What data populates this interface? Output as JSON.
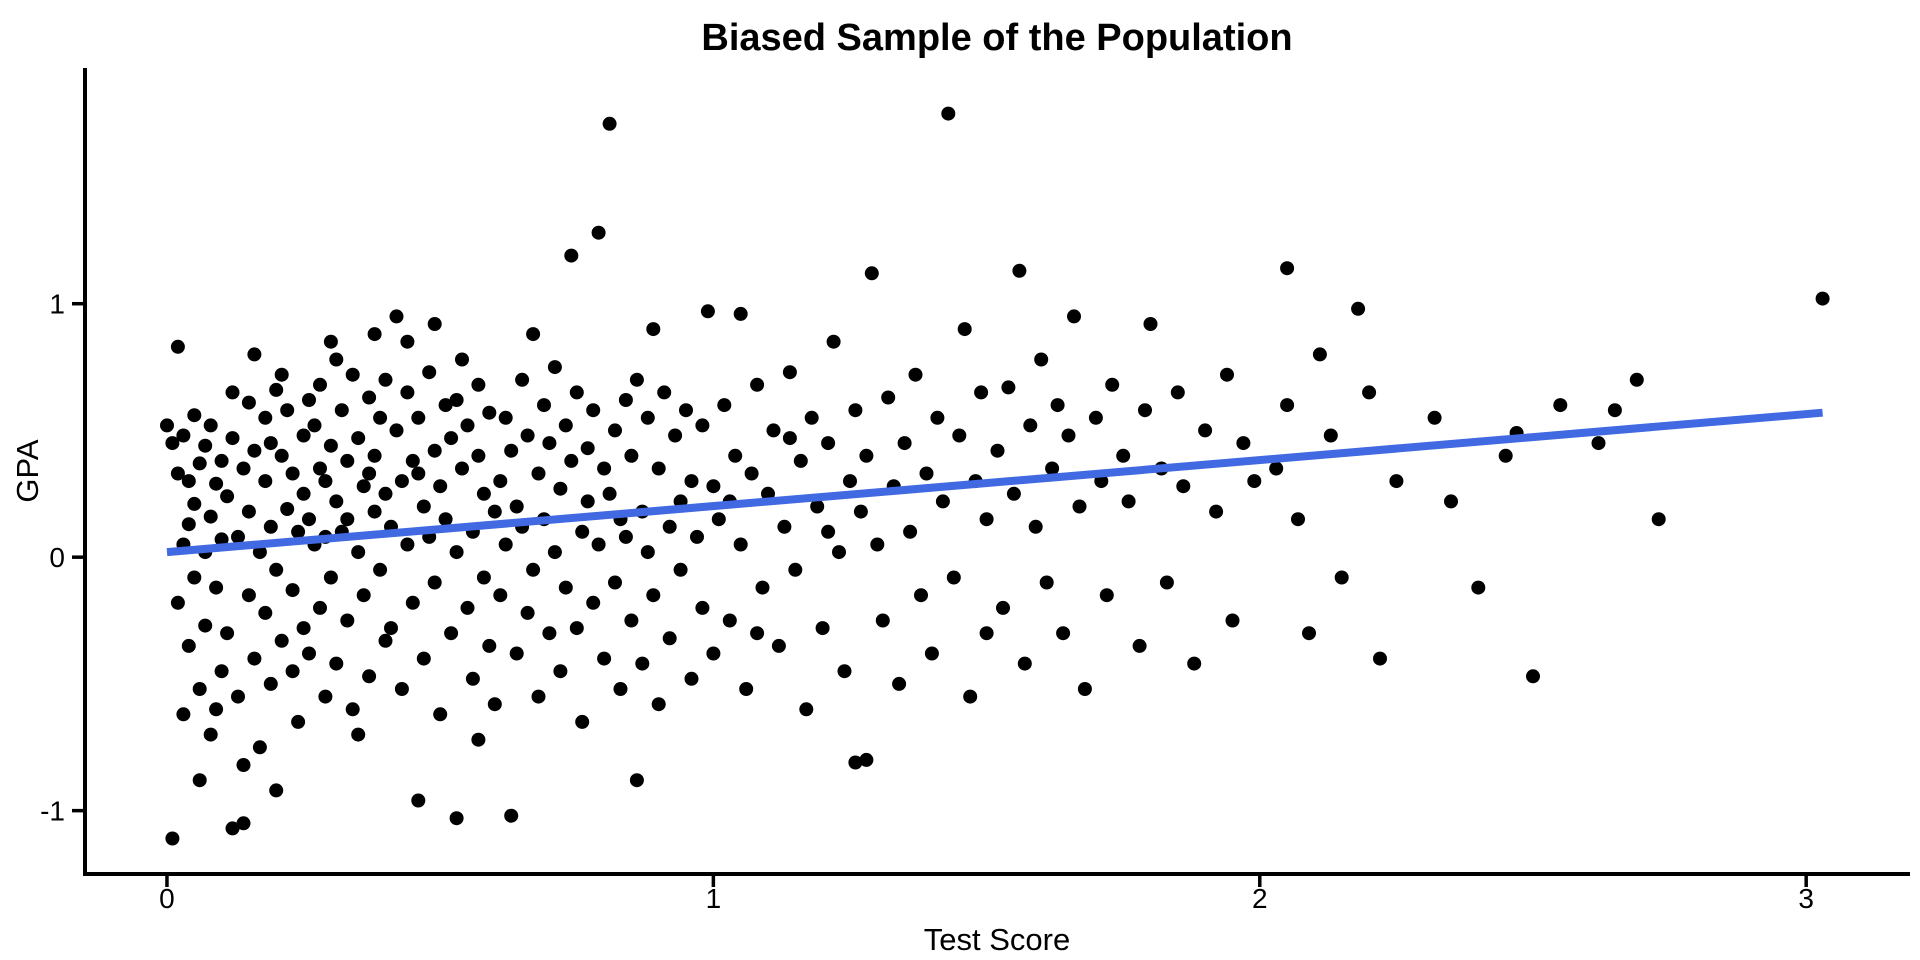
{
  "page": {
    "background": "#ffffff"
  },
  "chart_data": {
    "type": "scatter",
    "title": "Biased Sample of the Population",
    "xlabel": "Test Score",
    "ylabel": "GPA",
    "xlim": [
      -0.15,
      3.19
    ],
    "ylim": [
      -1.25,
      1.93
    ],
    "x_ticks": [
      0,
      1,
      2,
      3
    ],
    "y_ticks": [
      -1,
      0,
      1
    ],
    "grid": false,
    "legend": "none",
    "axis_color": "#000000",
    "point_color": "#000000",
    "point_radius": 7,
    "trend_line": {
      "type": "linear",
      "x1": 0.0,
      "y1": 0.02,
      "x2": 3.03,
      "y2": 0.57,
      "color": "#4169E1",
      "width": 8
    },
    "points": [
      [
        0.0,
        0.52
      ],
      [
        0.01,
        -1.11
      ],
      [
        0.01,
        0.45
      ],
      [
        0.02,
        0.83
      ],
      [
        0.02,
        -0.18
      ],
      [
        0.02,
        0.33
      ],
      [
        0.03,
        0.05
      ],
      [
        0.03,
        -0.62
      ],
      [
        0.03,
        0.48
      ],
      [
        0.04,
        0.13
      ],
      [
        0.04,
        -0.35
      ],
      [
        0.05,
        0.56
      ],
      [
        0.05,
        -0.08
      ],
      [
        0.05,
        0.21
      ],
      [
        0.06,
        -0.52
      ],
      [
        0.06,
        0.37
      ],
      [
        0.07,
        0.02
      ],
      [
        0.07,
        -0.27
      ],
      [
        0.07,
        0.44
      ],
      [
        0.08,
        -0.7
      ],
      [
        0.08,
        0.16
      ],
      [
        0.08,
        0.52
      ],
      [
        0.09,
        -0.12
      ],
      [
        0.09,
        0.29
      ],
      [
        0.1,
        -0.45
      ],
      [
        0.1,
        0.07
      ],
      [
        0.1,
        0.38
      ],
      [
        0.06,
        -0.88
      ],
      [
        0.04,
        0.3
      ],
      [
        0.09,
        -0.6
      ],
      [
        0.11,
        0.24
      ],
      [
        0.11,
        -0.3
      ],
      [
        0.12,
        0.47
      ],
      [
        0.12,
        -1.07
      ],
      [
        0.13,
        0.08
      ],
      [
        0.13,
        -0.55
      ],
      [
        0.14,
        0.35
      ],
      [
        0.14,
        -1.05
      ],
      [
        0.15,
        0.61
      ],
      [
        0.15,
        -0.15
      ],
      [
        0.15,
        0.18
      ],
      [
        0.16,
        -0.4
      ],
      [
        0.16,
        0.42
      ],
      [
        0.17,
        0.02
      ],
      [
        0.17,
        -0.75
      ],
      [
        0.18,
        0.55
      ],
      [
        0.18,
        -0.22
      ],
      [
        0.18,
        0.3
      ],
      [
        0.19,
        -0.5
      ],
      [
        0.19,
        0.12
      ],
      [
        0.2,
        0.66
      ],
      [
        0.2,
        -0.05
      ],
      [
        0.2,
        -0.92
      ],
      [
        0.21,
        0.4
      ],
      [
        0.21,
        -0.33
      ],
      [
        0.22,
        0.19
      ],
      [
        0.22,
        0.58
      ],
      [
        0.23,
        -0.13
      ],
      [
        0.23,
        0.33
      ],
      [
        0.24,
        -0.65
      ],
      [
        0.24,
        0.1
      ],
      [
        0.25,
        0.48
      ],
      [
        0.25,
        -0.28
      ],
      [
        0.12,
        0.65
      ],
      [
        0.16,
        0.8
      ],
      [
        0.21,
        0.72
      ],
      [
        0.14,
        -0.82
      ],
      [
        0.19,
        0.45
      ],
      [
        0.23,
        -0.45
      ],
      [
        0.25,
        0.25
      ],
      [
        0.26,
        0.15
      ],
      [
        0.26,
        -0.38
      ],
      [
        0.27,
        0.52
      ],
      [
        0.27,
        0.05
      ],
      [
        0.28,
        -0.2
      ],
      [
        0.28,
        0.68
      ],
      [
        0.29,
        0.3
      ],
      [
        0.29,
        -0.55
      ],
      [
        0.3,
        0.44
      ],
      [
        0.3,
        -0.08
      ],
      [
        0.3,
        0.85
      ],
      [
        0.31,
        0.22
      ],
      [
        0.31,
        -0.42
      ],
      [
        0.32,
        0.58
      ],
      [
        0.32,
        0.1
      ],
      [
        0.33,
        -0.25
      ],
      [
        0.33,
        0.38
      ],
      [
        0.34,
        0.72
      ],
      [
        0.34,
        -0.6
      ],
      [
        0.35,
        0.02
      ],
      [
        0.35,
        0.47
      ],
      [
        0.36,
        -0.15
      ],
      [
        0.36,
        0.28
      ],
      [
        0.37,
        0.63
      ],
      [
        0.37,
        -0.47
      ],
      [
        0.38,
        0.18
      ],
      [
        0.38,
        0.4
      ],
      [
        0.39,
        -0.05
      ],
      [
        0.39,
        0.55
      ],
      [
        0.4,
        -0.33
      ],
      [
        0.4,
        0.25
      ],
      [
        0.28,
        0.35
      ],
      [
        0.31,
        0.78
      ],
      [
        0.35,
        -0.7
      ],
      [
        0.38,
        0.88
      ],
      [
        0.26,
        0.62
      ],
      [
        0.33,
        0.15
      ],
      [
        0.37,
        0.33
      ],
      [
        0.29,
        0.08
      ],
      [
        0.4,
        0.7
      ],
      [
        0.41,
        0.12
      ],
      [
        0.41,
        -0.28
      ],
      [
        0.42,
        0.5
      ],
      [
        0.42,
        0.95
      ],
      [
        0.43,
        -0.52
      ],
      [
        0.43,
        0.3
      ],
      [
        0.44,
        0.05
      ],
      [
        0.44,
        0.65
      ],
      [
        0.45,
        -0.18
      ],
      [
        0.45,
        0.38
      ],
      [
        0.46,
        -0.96
      ],
      [
        0.46,
        0.55
      ],
      [
        0.47,
        0.2
      ],
      [
        0.47,
        -0.4
      ],
      [
        0.48,
        0.73
      ],
      [
        0.48,
        0.08
      ],
      [
        0.49,
        -0.1
      ],
      [
        0.49,
        0.42
      ],
      [
        0.5,
        0.28
      ],
      [
        0.5,
        -0.62
      ],
      [
        0.51,
        0.6
      ],
      [
        0.51,
        0.15
      ],
      [
        0.52,
        -0.3
      ],
      [
        0.52,
        0.47
      ],
      [
        0.53,
        0.02
      ],
      [
        0.53,
        -1.03
      ],
      [
        0.54,
        0.35
      ],
      [
        0.54,
        0.78
      ],
      [
        0.55,
        -0.2
      ],
      [
        0.55,
        0.52
      ],
      [
        0.56,
        0.1
      ],
      [
        0.56,
        -0.48
      ],
      [
        0.57,
        0.4
      ],
      [
        0.57,
        0.68
      ],
      [
        0.58,
        -0.08
      ],
      [
        0.58,
        0.25
      ],
      [
        0.59,
        -0.35
      ],
      [
        0.59,
        0.57
      ],
      [
        0.6,
        0.18
      ],
      [
        0.6,
        -0.58
      ],
      [
        0.44,
        0.85
      ],
      [
        0.49,
        0.92
      ],
      [
        0.53,
        0.62
      ],
      [
        0.57,
        -0.72
      ],
      [
        0.46,
        0.33
      ],
      [
        0.61,
        0.3
      ],
      [
        0.61,
        -0.15
      ],
      [
        0.62,
        0.55
      ],
      [
        0.62,
        0.05
      ],
      [
        0.63,
        -1.02
      ],
      [
        0.63,
        0.42
      ],
      [
        0.64,
        0.2
      ],
      [
        0.64,
        -0.38
      ],
      [
        0.65,
        0.7
      ],
      [
        0.65,
        0.12
      ],
      [
        0.66,
        -0.22
      ],
      [
        0.66,
        0.48
      ],
      [
        0.67,
        0.88
      ],
      [
        0.67,
        -0.05
      ],
      [
        0.68,
        0.33
      ],
      [
        0.68,
        -0.55
      ],
      [
        0.69,
        0.6
      ],
      [
        0.69,
        0.15
      ],
      [
        0.7,
        -0.3
      ],
      [
        0.7,
        0.45
      ],
      [
        0.71,
        0.02
      ],
      [
        0.71,
        0.75
      ],
      [
        0.72,
        -0.45
      ],
      [
        0.72,
        0.27
      ],
      [
        0.73,
        0.52
      ],
      [
        0.73,
        -0.12
      ],
      [
        0.74,
        1.19
      ],
      [
        0.74,
        0.38
      ],
      [
        0.75,
        -0.28
      ],
      [
        0.75,
        0.65
      ],
      [
        0.76,
        0.1
      ],
      [
        0.76,
        -0.65
      ],
      [
        0.77,
        0.43
      ],
      [
        0.77,
        0.22
      ],
      [
        0.78,
        -0.18
      ],
      [
        0.78,
        0.58
      ],
      [
        0.79,
        0.05
      ],
      [
        0.79,
        1.28
      ],
      [
        0.8,
        -0.4
      ],
      [
        0.8,
        0.35
      ],
      [
        0.81,
        1.71
      ],
      [
        0.81,
        0.25
      ],
      [
        0.82,
        -0.1
      ],
      [
        0.82,
        0.5
      ],
      [
        0.83,
        0.15
      ],
      [
        0.83,
        -0.52
      ],
      [
        0.84,
        0.62
      ],
      [
        0.84,
        0.08
      ],
      [
        0.85,
        -0.25
      ],
      [
        0.85,
        0.4
      ],
      [
        0.86,
        -0.88
      ],
      [
        0.86,
        0.7
      ],
      [
        0.87,
        0.18
      ],
      [
        0.87,
        -0.42
      ],
      [
        0.88,
        0.55
      ],
      [
        0.88,
        0.02
      ],
      [
        0.89,
        0.9
      ],
      [
        0.89,
        -0.15
      ],
      [
        0.9,
        0.35
      ],
      [
        0.9,
        -0.58
      ],
      [
        0.91,
        0.65
      ],
      [
        0.92,
        0.12
      ],
      [
        0.92,
        -0.32
      ],
      [
        0.93,
        0.48
      ],
      [
        0.94,
        0.22
      ],
      [
        0.94,
        -0.05
      ],
      [
        0.95,
        0.58
      ],
      [
        0.96,
        -0.48
      ],
      [
        0.96,
        0.3
      ],
      [
        0.97,
        0.08
      ],
      [
        0.98,
        -0.2
      ],
      [
        0.98,
        0.52
      ],
      [
        0.99,
        0.97
      ],
      [
        1.0,
        0.28
      ],
      [
        1.0,
        -0.38
      ],
      [
        1.01,
        0.15
      ],
      [
        1.02,
        0.6
      ],
      [
        1.03,
        -0.25
      ],
      [
        1.04,
        0.4
      ],
      [
        1.05,
        0.05
      ],
      [
        1.05,
        0.96
      ],
      [
        1.06,
        -0.52
      ],
      [
        1.07,
        0.33
      ],
      [
        1.08,
        0.68
      ],
      [
        1.09,
        -0.12
      ],
      [
        1.1,
        0.25
      ],
      [
        1.11,
        0.5
      ],
      [
        1.12,
        -0.35
      ],
      [
        1.13,
        0.12
      ],
      [
        1.14,
        0.73
      ],
      [
        1.15,
        -0.05
      ],
      [
        1.16,
        0.38
      ],
      [
        1.17,
        -0.6
      ],
      [
        1.18,
        0.55
      ],
      [
        1.19,
        0.2
      ],
      [
        1.2,
        -0.28
      ],
      [
        1.21,
        0.45
      ],
      [
        1.22,
        0.85
      ],
      [
        1.23,
        0.02
      ],
      [
        1.24,
        -0.45
      ],
      [
        1.25,
        0.3
      ],
      [
        1.03,
        0.22
      ],
      [
        1.08,
        -0.3
      ],
      [
        1.14,
        0.47
      ],
      [
        1.21,
        0.1
      ],
      [
        1.26,
        -0.81
      ],
      [
        1.26,
        0.58
      ],
      [
        1.27,
        0.18
      ],
      [
        1.28,
        -0.8
      ],
      [
        1.28,
        0.4
      ],
      [
        1.29,
        1.12
      ],
      [
        1.3,
        0.05
      ],
      [
        1.31,
        -0.25
      ],
      [
        1.32,
        0.63
      ],
      [
        1.33,
        0.28
      ],
      [
        1.34,
        -0.5
      ],
      [
        1.35,
        0.45
      ],
      [
        1.36,
        0.1
      ],
      [
        1.37,
        0.72
      ],
      [
        1.38,
        -0.15
      ],
      [
        1.39,
        0.33
      ],
      [
        1.4,
        -0.38
      ],
      [
        1.41,
        0.55
      ],
      [
        1.42,
        0.22
      ],
      [
        1.43,
        1.75
      ],
      [
        1.44,
        -0.08
      ],
      [
        1.45,
        0.48
      ],
      [
        1.46,
        0.9
      ],
      [
        1.47,
        -0.55
      ],
      [
        1.48,
        0.3
      ],
      [
        1.49,
        0.65
      ],
      [
        1.5,
        0.15
      ],
      [
        1.5,
        -0.3
      ],
      [
        1.52,
        0.42
      ],
      [
        1.53,
        -0.2
      ],
      [
        1.54,
        0.67
      ],
      [
        1.55,
        0.25
      ],
      [
        1.56,
        1.13
      ],
      [
        1.57,
        -0.42
      ],
      [
        1.58,
        0.52
      ],
      [
        1.59,
        0.12
      ],
      [
        1.6,
        0.78
      ],
      [
        1.61,
        -0.1
      ],
      [
        1.62,
        0.35
      ],
      [
        1.63,
        0.6
      ],
      [
        1.64,
        -0.3
      ],
      [
        1.65,
        0.48
      ],
      [
        1.66,
        0.95
      ],
      [
        1.67,
        0.2
      ],
      [
        1.68,
        -0.52
      ],
      [
        1.7,
        0.55
      ],
      [
        1.71,
        0.3
      ],
      [
        1.72,
        -0.15
      ],
      [
        1.73,
        0.68
      ],
      [
        1.75,
        0.4
      ],
      [
        1.76,
        0.22
      ],
      [
        1.78,
        -0.35
      ],
      [
        1.79,
        0.58
      ],
      [
        1.8,
        0.92
      ],
      [
        1.82,
        0.35
      ],
      [
        1.83,
        -0.1
      ],
      [
        1.85,
        0.65
      ],
      [
        1.86,
        0.28
      ],
      [
        1.88,
        -0.42
      ],
      [
        1.9,
        0.5
      ],
      [
        1.92,
        0.18
      ],
      [
        1.94,
        0.72
      ],
      [
        1.95,
        -0.25
      ],
      [
        1.97,
        0.45
      ],
      [
        1.99,
        0.3
      ],
      [
        2.05,
        1.14
      ],
      [
        2.03,
        0.35
      ],
      [
        2.05,
        0.6
      ],
      [
        2.07,
        0.15
      ],
      [
        2.09,
        -0.3
      ],
      [
        2.11,
        0.8
      ],
      [
        2.13,
        0.48
      ],
      [
        2.15,
        -0.08
      ],
      [
        2.18,
        0.98
      ],
      [
        2.2,
        0.65
      ],
      [
        2.22,
        -0.4
      ],
      [
        2.25,
        0.3
      ],
      [
        2.32,
        0.55
      ],
      [
        2.35,
        0.22
      ],
      [
        2.4,
        -0.12
      ],
      [
        2.45,
        0.4
      ],
      [
        2.47,
        0.49
      ],
      [
        2.5,
        -0.47
      ],
      [
        2.55,
        0.6
      ],
      [
        2.62,
        0.45
      ],
      [
        2.65,
        0.58
      ],
      [
        2.69,
        0.7
      ],
      [
        2.73,
        0.15
      ],
      [
        3.03,
        1.02
      ]
    ]
  }
}
